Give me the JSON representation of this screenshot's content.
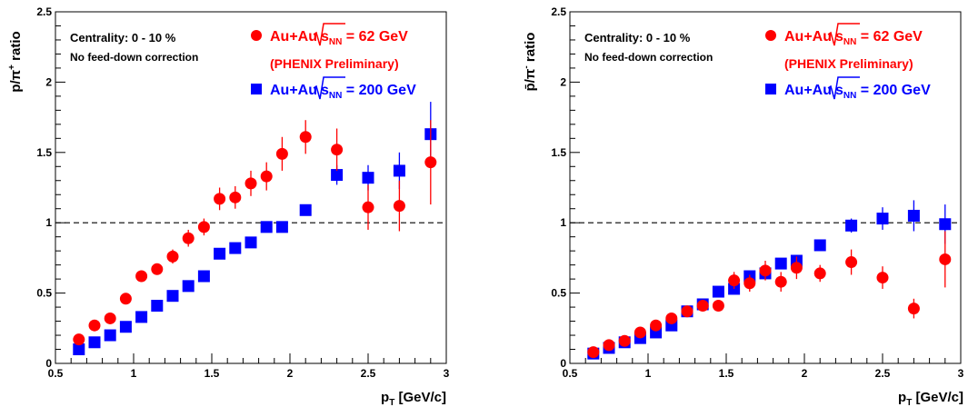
{
  "colors": {
    "red": "#ff0000",
    "blue": "#0000ff",
    "axis": "#000000"
  },
  "chart_data": [
    {
      "type": "scatter",
      "ylabel_main": "p/π",
      "ylabel_sup": "+",
      "ylabel_tail": " ratio",
      "xlabel_main": "p",
      "xlabel_sub": "T",
      "xlabel_tail": " [GeV/c]",
      "xlim": [
        0.5,
        3.0
      ],
      "ylim": [
        0,
        2.5
      ],
      "x_ticks": [
        "0.5",
        "1",
        "1.5",
        "2",
        "2.5",
        "3"
      ],
      "y_ticks": [
        "0",
        "0.5",
        "1",
        "1.5",
        "2",
        "2.5"
      ],
      "reference_line": 1,
      "annotations": [
        "Centrality: 0 - 10 %",
        "No feed-down correction"
      ],
      "legend": {
        "s1_prefix": "Au+Au",
        "s1_sqrt": "s",
        "s1_sub": "NN",
        "s1_suffix": " = 62 GeV",
        "s1_note": "(PHENIX Preliminary)",
        "s2_prefix": "Au+Au",
        "s2_sqrt": "s",
        "s2_sub": "NN",
        "s2_suffix": " = 200 GeV"
      },
      "series": [
        {
          "marker": "circle",
          "color": "#ff0000",
          "x": [
            0.65,
            0.75,
            0.85,
            0.95,
            1.05,
            1.15,
            1.25,
            1.35,
            1.45,
            1.55,
            1.65,
            1.75,
            1.85,
            1.95,
            2.1,
            2.3,
            2.5,
            2.7,
            2.9
          ],
          "y": [
            0.17,
            0.27,
            0.32,
            0.46,
            0.62,
            0.67,
            0.76,
            0.89,
            0.97,
            1.17,
            1.18,
            1.28,
            1.33,
            1.49,
            1.61,
            1.52,
            1.11,
            1.12,
            1.43
          ],
          "err": [
            0.03,
            0.03,
            0.03,
            0.03,
            0.04,
            0.04,
            0.05,
            0.06,
            0.06,
            0.08,
            0.08,
            0.09,
            0.1,
            0.12,
            0.12,
            0.15,
            0.16,
            0.18,
            0.3
          ]
        },
        {
          "marker": "square",
          "color": "#0000ff",
          "x": [
            0.65,
            0.75,
            0.85,
            0.95,
            1.05,
            1.15,
            1.25,
            1.35,
            1.45,
            1.55,
            1.65,
            1.75,
            1.85,
            1.95,
            2.1,
            2.3,
            2.5,
            2.7,
            2.9
          ],
          "y": [
            0.1,
            0.15,
            0.2,
            0.26,
            0.33,
            0.41,
            0.48,
            0.55,
            0.62,
            0.78,
            0.82,
            0.86,
            0.97,
            0.97,
            1.09,
            1.34,
            1.32,
            1.37,
            1.63
          ],
          "err": [
            0.01,
            0.01,
            0.01,
            0.01,
            0.01,
            0.01,
            0.02,
            0.02,
            0.02,
            0.03,
            0.03,
            0.03,
            0.03,
            0.03,
            0.04,
            0.07,
            0.09,
            0.13,
            0.23
          ]
        }
      ]
    },
    {
      "type": "scatter",
      "ylabel_main": "p̄/π",
      "ylabel_sup": "-",
      "ylabel_tail": " ratio",
      "xlabel_main": "p",
      "xlabel_sub": "T",
      "xlabel_tail": " [GeV/c]",
      "xlim": [
        0.5,
        3.0
      ],
      "ylim": [
        0,
        2.5
      ],
      "x_ticks": [
        "0.5",
        "1",
        "1.5",
        "2",
        "2.5",
        "3"
      ],
      "y_ticks": [
        "0",
        "0.5",
        "1",
        "1.5",
        "2",
        "2.5"
      ],
      "reference_line": 1,
      "annotations": [
        "Centrality: 0 - 10 %",
        "No feed-down correction"
      ],
      "legend": {
        "s1_prefix": "Au+Au",
        "s1_sqrt": "s",
        "s1_sub": "NN",
        "s1_suffix": " = 62 GeV",
        "s1_note": "(PHENIX Preliminary)",
        "s2_prefix": "Au+Au",
        "s2_sqrt": "s",
        "s2_sub": "NN",
        "s2_suffix": " = 200 GeV"
      },
      "series": [
        {
          "marker": "circle",
          "color": "#ff0000",
          "x": [
            0.65,
            0.75,
            0.85,
            0.95,
            1.05,
            1.15,
            1.25,
            1.35,
            1.45,
            1.55,
            1.65,
            1.75,
            1.85,
            1.95,
            2.1,
            2.3,
            2.5,
            2.7,
            2.9
          ],
          "y": [
            0.08,
            0.13,
            0.16,
            0.22,
            0.27,
            0.32,
            0.37,
            0.41,
            0.41,
            0.59,
            0.57,
            0.66,
            0.58,
            0.68,
            0.64,
            0.72,
            0.61,
            0.39,
            0.74
          ],
          "err": [
            0.02,
            0.02,
            0.02,
            0.02,
            0.03,
            0.03,
            0.03,
            0.04,
            0.04,
            0.06,
            0.06,
            0.07,
            0.07,
            0.08,
            0.06,
            0.09,
            0.08,
            0.07,
            0.2
          ]
        },
        {
          "marker": "square",
          "color": "#0000ff",
          "x": [
            0.65,
            0.75,
            0.85,
            0.95,
            1.05,
            1.15,
            1.25,
            1.35,
            1.45,
            1.55,
            1.65,
            1.75,
            1.85,
            1.95,
            2.1,
            2.3,
            2.5,
            2.7,
            2.9
          ],
          "y": [
            0.07,
            0.11,
            0.15,
            0.18,
            0.22,
            0.27,
            0.37,
            0.42,
            0.51,
            0.53,
            0.62,
            0.64,
            0.71,
            0.73,
            0.84,
            0.98,
            1.03,
            1.05,
            0.99
          ],
          "err": [
            0.01,
            0.01,
            0.01,
            0.01,
            0.01,
            0.01,
            0.02,
            0.02,
            0.02,
            0.02,
            0.02,
            0.03,
            0.03,
            0.03,
            0.03,
            0.05,
            0.08,
            0.11,
            0.14
          ]
        }
      ]
    }
  ]
}
